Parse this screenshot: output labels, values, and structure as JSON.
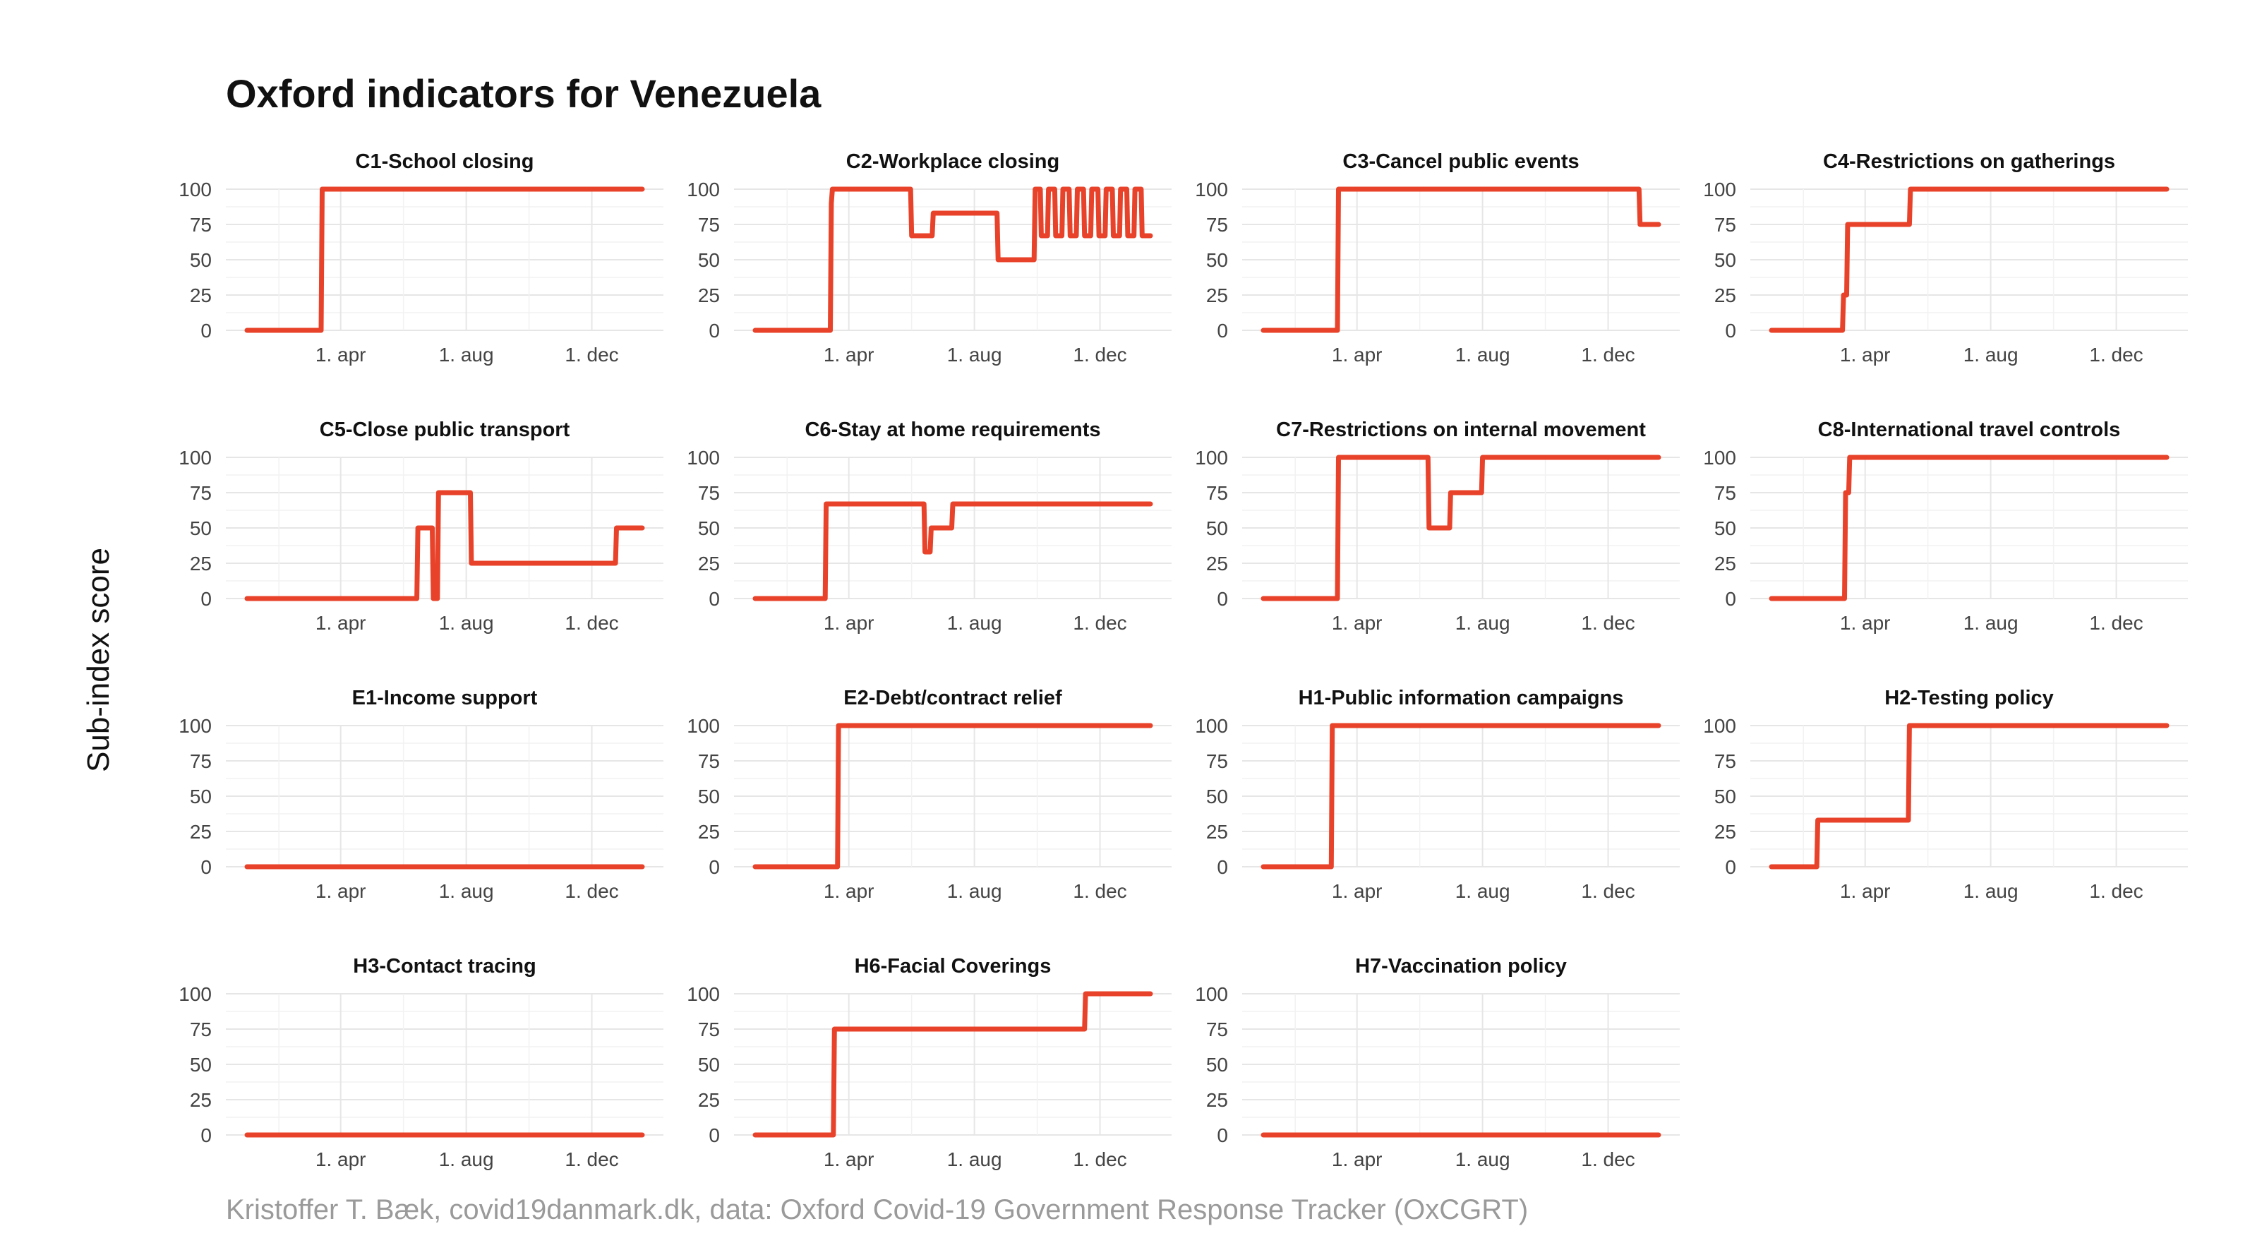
{
  "figure": {
    "title": "Oxford indicators for Venezuela",
    "ylabel": "Sub-index score",
    "caption": "Kristoffer T. Bæk, covid19danmark.dk, data: Oxford Covid-19 Government Response Tracker (OxCGRT)",
    "line_color": "#e8432a"
  },
  "chart_data": {
    "type": "line",
    "layout": "facet-grid 4x4",
    "x_unit": "date",
    "x_range": [
      "2020-01-01",
      "2021-01-19"
    ],
    "x_ticks": [
      {
        "date": "2020-04-01",
        "label": "1. apr"
      },
      {
        "date": "2020-08-01",
        "label": "1. aug"
      },
      {
        "date": "2020-12-01",
        "label": "1. dec"
      }
    ],
    "ylim": [
      0,
      100
    ],
    "y_ticks": [
      0,
      25,
      50,
      75,
      100
    ],
    "grid": true,
    "panels": [
      {
        "title": "C1-School closing",
        "points": [
          [
            "2020-01-01",
            0
          ],
          [
            "2020-03-13",
            0
          ],
          [
            "2020-03-14",
            100
          ],
          [
            "2021-01-19",
            100
          ]
        ]
      },
      {
        "title": "C2-Workplace closing",
        "points": [
          [
            "2020-01-01",
            0
          ],
          [
            "2020-03-14",
            0
          ],
          [
            "2020-03-15",
            90
          ],
          [
            "2020-03-16",
            100
          ],
          [
            "2020-05-31",
            100
          ],
          [
            "2020-06-01",
            67
          ],
          [
            "2020-06-21",
            67
          ],
          [
            "2020-06-22",
            83
          ],
          [
            "2020-08-23",
            83
          ],
          [
            "2020-08-24",
            50
          ],
          [
            "2020-09-28",
            50
          ],
          [
            "2020-09-29",
            100
          ],
          [
            "2020-10-04",
            100
          ],
          [
            "2020-10-05",
            67
          ],
          [
            "2020-10-11",
            67
          ],
          [
            "2020-10-12",
            100
          ],
          [
            "2020-10-18",
            100
          ],
          [
            "2020-10-19",
            67
          ],
          [
            "2020-10-25",
            67
          ],
          [
            "2020-10-26",
            100
          ],
          [
            "2020-11-01",
            100
          ],
          [
            "2020-11-02",
            67
          ],
          [
            "2020-11-08",
            67
          ],
          [
            "2020-11-09",
            100
          ],
          [
            "2020-11-15",
            100
          ],
          [
            "2020-11-16",
            67
          ],
          [
            "2020-11-22",
            67
          ],
          [
            "2020-11-23",
            100
          ],
          [
            "2020-11-29",
            100
          ],
          [
            "2020-11-30",
            67
          ],
          [
            "2020-12-06",
            67
          ],
          [
            "2020-12-07",
            100
          ],
          [
            "2020-12-13",
            100
          ],
          [
            "2020-12-14",
            67
          ],
          [
            "2020-12-20",
            67
          ],
          [
            "2020-12-21",
            100
          ],
          [
            "2020-12-27",
            100
          ],
          [
            "2020-12-28",
            67
          ],
          [
            "2021-01-03",
            67
          ],
          [
            "2021-01-04",
            100
          ],
          [
            "2021-01-10",
            100
          ],
          [
            "2021-01-11",
            67
          ],
          [
            "2021-01-19",
            67
          ]
        ]
      },
      {
        "title": "C3-Cancel public events",
        "points": [
          [
            "2020-01-01",
            0
          ],
          [
            "2020-03-13",
            0
          ],
          [
            "2020-03-14",
            100
          ],
          [
            "2020-12-31",
            100
          ],
          [
            "2021-01-01",
            75
          ],
          [
            "2021-01-19",
            75
          ]
        ]
      },
      {
        "title": "C4-Restrictions on gatherings",
        "points": [
          [
            "2020-01-01",
            0
          ],
          [
            "2020-03-10",
            0
          ],
          [
            "2020-03-11",
            25
          ],
          [
            "2020-03-14",
            25
          ],
          [
            "2020-03-15",
            75
          ],
          [
            "2020-05-14",
            75
          ],
          [
            "2020-05-15",
            100
          ],
          [
            "2021-01-19",
            100
          ]
        ]
      },
      {
        "title": "C5-Close public transport",
        "points": [
          [
            "2020-01-01",
            0
          ],
          [
            "2020-06-14",
            0
          ],
          [
            "2020-06-15",
            50
          ],
          [
            "2020-06-29",
            50
          ],
          [
            "2020-06-30",
            0
          ],
          [
            "2020-07-04",
            0
          ],
          [
            "2020-07-05",
            75
          ],
          [
            "2020-08-05",
            75
          ],
          [
            "2020-08-06",
            25
          ],
          [
            "2020-12-24",
            25
          ],
          [
            "2020-12-25",
            50
          ],
          [
            "2021-01-19",
            50
          ]
        ]
      },
      {
        "title": "C6-Stay at home requirements",
        "points": [
          [
            "2020-01-01",
            0
          ],
          [
            "2020-03-09",
            0
          ],
          [
            "2020-03-10",
            67
          ],
          [
            "2020-06-13",
            67
          ],
          [
            "2020-06-14",
            33
          ],
          [
            "2020-06-19",
            33
          ],
          [
            "2020-06-20",
            50
          ],
          [
            "2020-07-10",
            50
          ],
          [
            "2020-07-11",
            67
          ],
          [
            "2021-01-19",
            67
          ]
        ]
      },
      {
        "title": "C7-Restrictions on internal movement",
        "points": [
          [
            "2020-01-01",
            0
          ],
          [
            "2020-03-13",
            0
          ],
          [
            "2020-03-14",
            100
          ],
          [
            "2020-06-09",
            100
          ],
          [
            "2020-06-10",
            50
          ],
          [
            "2020-06-30",
            50
          ],
          [
            "2020-07-01",
            75
          ],
          [
            "2020-07-31",
            75
          ],
          [
            "2020-08-01",
            100
          ],
          [
            "2021-01-19",
            100
          ]
        ]
      },
      {
        "title": "C8-International travel controls",
        "points": [
          [
            "2020-01-01",
            0
          ],
          [
            "2020-03-12",
            0
          ],
          [
            "2020-03-13",
            75
          ],
          [
            "2020-03-16",
            75
          ],
          [
            "2020-03-17",
            100
          ],
          [
            "2021-01-19",
            100
          ]
        ]
      },
      {
        "title": "E1-Income support",
        "points": [
          [
            "2020-01-01",
            0
          ],
          [
            "2021-01-19",
            0
          ]
        ]
      },
      {
        "title": "E2-Debt/contract relief",
        "points": [
          [
            "2020-01-01",
            0
          ],
          [
            "2020-03-21",
            0
          ],
          [
            "2020-03-22",
            100
          ],
          [
            "2021-01-19",
            100
          ]
        ]
      },
      {
        "title": "H1-Public information campaigns",
        "points": [
          [
            "2020-01-01",
            0
          ],
          [
            "2020-03-07",
            0
          ],
          [
            "2020-03-08",
            100
          ],
          [
            "2021-01-19",
            100
          ]
        ]
      },
      {
        "title": "H2-Testing policy",
        "points": [
          [
            "2020-01-01",
            0
          ],
          [
            "2020-02-14",
            0
          ],
          [
            "2020-02-15",
            33
          ],
          [
            "2020-05-13",
            33
          ],
          [
            "2020-05-14",
            100
          ],
          [
            "2021-01-19",
            100
          ]
        ]
      },
      {
        "title": "H3-Contact tracing",
        "points": [
          [
            "2020-01-01",
            0
          ],
          [
            "2021-01-19",
            0
          ]
        ]
      },
      {
        "title": "H6-Facial Coverings",
        "points": [
          [
            "2020-01-01",
            0
          ],
          [
            "2020-03-17",
            0
          ],
          [
            "2020-03-18",
            75
          ],
          [
            "2020-11-16",
            75
          ],
          [
            "2020-11-17",
            100
          ],
          [
            "2021-01-19",
            100
          ]
        ]
      },
      {
        "title": "H7-Vaccination policy",
        "points": [
          [
            "2020-01-01",
            0
          ],
          [
            "2021-01-19",
            0
          ]
        ]
      }
    ]
  }
}
